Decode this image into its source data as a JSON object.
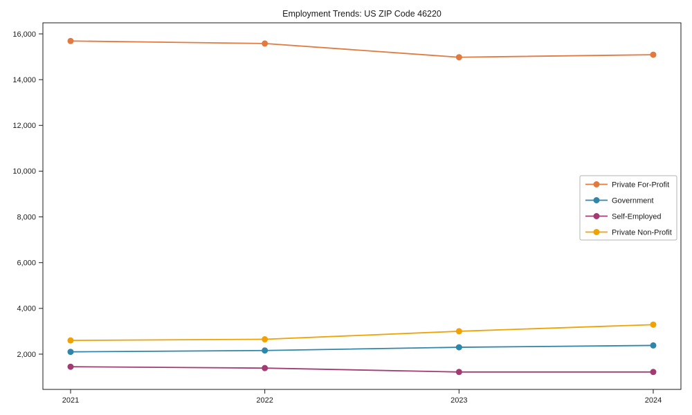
{
  "chart_data": {
    "type": "line",
    "title": "Employment Trends: US ZIP Code 46220",
    "categories": [
      "2021",
      "2022",
      "2023",
      "2024"
    ],
    "series": [
      {
        "name": "Private For-Profit",
        "color": "#E2793F",
        "values": [
          15690,
          15580,
          14980,
          15090
        ]
      },
      {
        "name": "Government",
        "color": "#2E86AB",
        "values": [
          2100,
          2160,
          2300,
          2380
        ]
      },
      {
        "name": "Self-Employed",
        "color": "#A23B72",
        "values": [
          1450,
          1390,
          1220,
          1220
        ]
      },
      {
        "name": "Private Non-Profit",
        "color": "#F0A202",
        "values": [
          2600,
          2650,
          3000,
          3290
        ]
      }
    ],
    "xlabel": "",
    "ylabel": "",
    "yticks": [
      2000,
      4000,
      6000,
      8000,
      10000,
      12000,
      14000,
      16000
    ],
    "ytick_labels": [
      "2,000",
      "4,000",
      "6,000",
      "8,000",
      "10,000",
      "12,000",
      "14,000",
      "16,000"
    ],
    "ylim": [
      458,
      16484
    ],
    "grid": false,
    "legend_position": "center-right",
    "marker": "circle",
    "axis_color": "#1a1a1a",
    "text_color": "#1a1a1a",
    "legend_border_color": "#b3b3b3",
    "background": "#ffffff"
  }
}
